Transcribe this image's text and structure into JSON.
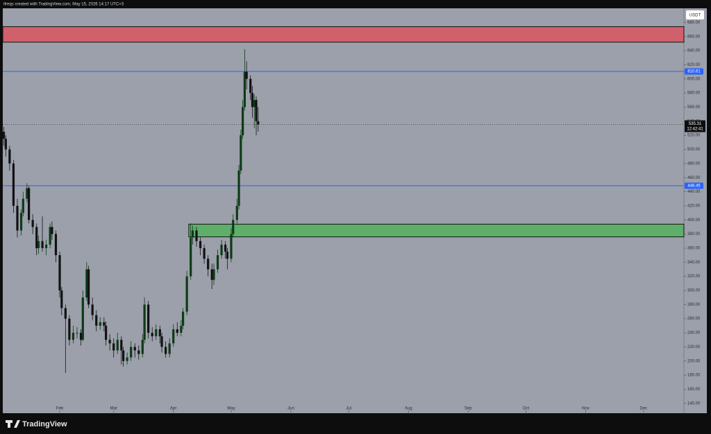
{
  "header": "ifreqs created with TradingView.com, May 15, 2026 14:17 UTC+3",
  "footer": "TradingView",
  "chart_data": {
    "type": "candlestick",
    "currency": "USDT",
    "x": [
      2,
      3,
      5,
      7,
      9,
      11,
      12,
      14,
      15,
      17,
      19,
      20,
      22,
      24,
      26,
      27,
      29,
      31,
      32,
      34,
      36,
      38,
      40,
      42,
      43,
      45,
      46,
      48,
      50,
      52,
      54,
      55,
      57,
      59,
      61,
      63,
      64,
      66,
      68,
      70,
      72,
      74,
      75,
      77,
      79,
      81,
      83,
      84,
      86,
      88,
      90,
      92,
      94,
      95,
      97,
      99,
      100,
      102,
      104,
      106,
      108,
      110,
      111,
      113,
      115,
      117,
      118,
      120,
      121,
      123,
      124,
      125,
      126,
      127,
      128,
      130,
      131,
      132,
      133,
      134
    ],
    "open": [
      525,
      515,
      500,
      480,
      420,
      385,
      410,
      430,
      445,
      400,
      390,
      360,
      370,
      360,
      365,
      390,
      380,
      350,
      300,
      275,
      260,
      230,
      240,
      240,
      230,
      290,
      330,
      280,
      265,
      250,
      255,
      250,
      230,
      225,
      215,
      230,
      215,
      200,
      205,
      220,
      215,
      210,
      230,
      280,
      240,
      235,
      245,
      235,
      220,
      210,
      225,
      245,
      240,
      250,
      270,
      320,
      375,
      385,
      370,
      360,
      345,
      330,
      315,
      330,
      350,
      365,
      355,
      345,
      380,
      400,
      420,
      470,
      520,
      560,
      610,
      600,
      580,
      560,
      570,
      540
    ],
    "high": [
      532,
      520,
      505,
      485,
      430,
      415,
      440,
      452,
      448,
      408,
      395,
      378,
      405,
      372,
      395,
      398,
      385,
      355,
      305,
      280,
      265,
      250,
      248,
      245,
      300,
      340,
      335,
      290,
      272,
      262,
      262,
      256,
      238,
      232,
      240,
      235,
      220,
      212,
      228,
      225,
      222,
      238,
      290,
      285,
      248,
      252,
      250,
      240,
      228,
      232,
      252,
      255,
      258,
      275,
      328,
      395,
      392,
      390,
      375,
      365,
      350,
      338,
      338,
      358,
      372,
      370,
      360,
      388,
      408,
      430,
      478,
      528,
      570,
      642,
      625,
      605,
      590,
      578,
      575,
      560
    ],
    "low": [
      505,
      490,
      470,
      410,
      375,
      378,
      405,
      425,
      395,
      380,
      350,
      352,
      355,
      350,
      360,
      372,
      340,
      290,
      265,
      183,
      222,
      225,
      232,
      222,
      228,
      285,
      275,
      258,
      242,
      244,
      242,
      222,
      215,
      205,
      210,
      195,
      192,
      195,
      200,
      205,
      202,
      205,
      225,
      232,
      228,
      230,
      225,
      212,
      205,
      205,
      220,
      235,
      235,
      245,
      265,
      315,
      365,
      362,
      350,
      338,
      320,
      302,
      308,
      325,
      345,
      345,
      330,
      340,
      375,
      395,
      415,
      465,
      515,
      555,
      585,
      570,
      545,
      530,
      520,
      525
    ],
    "close": [
      515,
      500,
      480,
      420,
      385,
      410,
      430,
      445,
      400,
      390,
      360,
      370,
      360,
      365,
      390,
      380,
      350,
      300,
      275,
      260,
      230,
      240,
      240,
      230,
      290,
      330,
      280,
      265,
      250,
      255,
      250,
      230,
      225,
      215,
      230,
      215,
      200,
      205,
      220,
      215,
      210,
      230,
      280,
      240,
      235,
      245,
      235,
      220,
      210,
      225,
      245,
      240,
      250,
      270,
      320,
      375,
      385,
      370,
      360,
      345,
      330,
      315,
      330,
      350,
      365,
      355,
      345,
      380,
      400,
      420,
      470,
      520,
      560,
      610,
      600,
      580,
      560,
      570,
      540,
      535.31
    ],
    "up_color": "#0e3a17",
    "down_color": "#111214",
    "last_price": 535.31,
    "countdown": "12:42:41",
    "levels": [
      {
        "value": 610.61,
        "color": "#2962ff"
      },
      {
        "value": 448.45,
        "color": "#2962ff"
      }
    ],
    "zones": [
      {
        "top": 674,
        "bottom": 652,
        "start": 0,
        "color": "#d0606b"
      },
      {
        "top": 394,
        "bottom": 376,
        "start": 98,
        "color": "#5fae6a"
      }
    ],
    "xlim": [
      0,
      355
    ],
    "xticks": [
      {
        "value": 31,
        "label": "Feb"
      },
      {
        "value": 59,
        "label": "Mar"
      },
      {
        "value": 90,
        "label": "Apr"
      },
      {
        "value": 120,
        "label": "May"
      },
      {
        "value": 151,
        "label": "Jun"
      },
      {
        "value": 181,
        "label": "Jul"
      },
      {
        "value": 212,
        "label": "Aug"
      },
      {
        "value": 243,
        "label": "Sep"
      },
      {
        "value": 273,
        "label": "Oct"
      },
      {
        "value": 304,
        "label": "Nov"
      },
      {
        "value": 334,
        "label": "Dec"
      }
    ],
    "ylim": [
      126,
      700
    ],
    "yticks": [
      {
        "value": 140,
        "label": "140.00"
      },
      {
        "value": 160,
        "label": "160.00"
      },
      {
        "value": 180,
        "label": "180.00"
      },
      {
        "value": 200,
        "label": "200.00"
      },
      {
        "value": 220,
        "label": "220.00"
      },
      {
        "value": 240,
        "label": "240.00"
      },
      {
        "value": 260,
        "label": "260.00"
      },
      {
        "value": 280,
        "label": "280.00"
      },
      {
        "value": 300,
        "label": "300.00"
      },
      {
        "value": 320,
        "label": "320.00"
      },
      {
        "value": 340,
        "label": "340.00"
      },
      {
        "value": 360,
        "label": "360.00"
      },
      {
        "value": 380,
        "label": "380.00"
      },
      {
        "value": 400,
        "label": "400.00"
      },
      {
        "value": 420,
        "label": "420.00"
      },
      {
        "value": 440,
        "label": "440.00"
      },
      {
        "value": 460,
        "label": "460.00"
      },
      {
        "value": 480,
        "label": "480.00"
      },
      {
        "value": 500,
        "label": "500.00"
      },
      {
        "value": 520,
        "label": "520.00"
      },
      {
        "value": 540,
        "label": "540.00"
      },
      {
        "value": 560,
        "label": "560.00"
      },
      {
        "value": 580,
        "label": "580.00"
      },
      {
        "value": 600,
        "label": "600.00"
      },
      {
        "value": 620,
        "label": "620.00"
      },
      {
        "value": 640,
        "label": "640.00"
      },
      {
        "value": 660,
        "label": "660.00"
      },
      {
        "value": 680,
        "label": "680.00"
      }
    ]
  }
}
